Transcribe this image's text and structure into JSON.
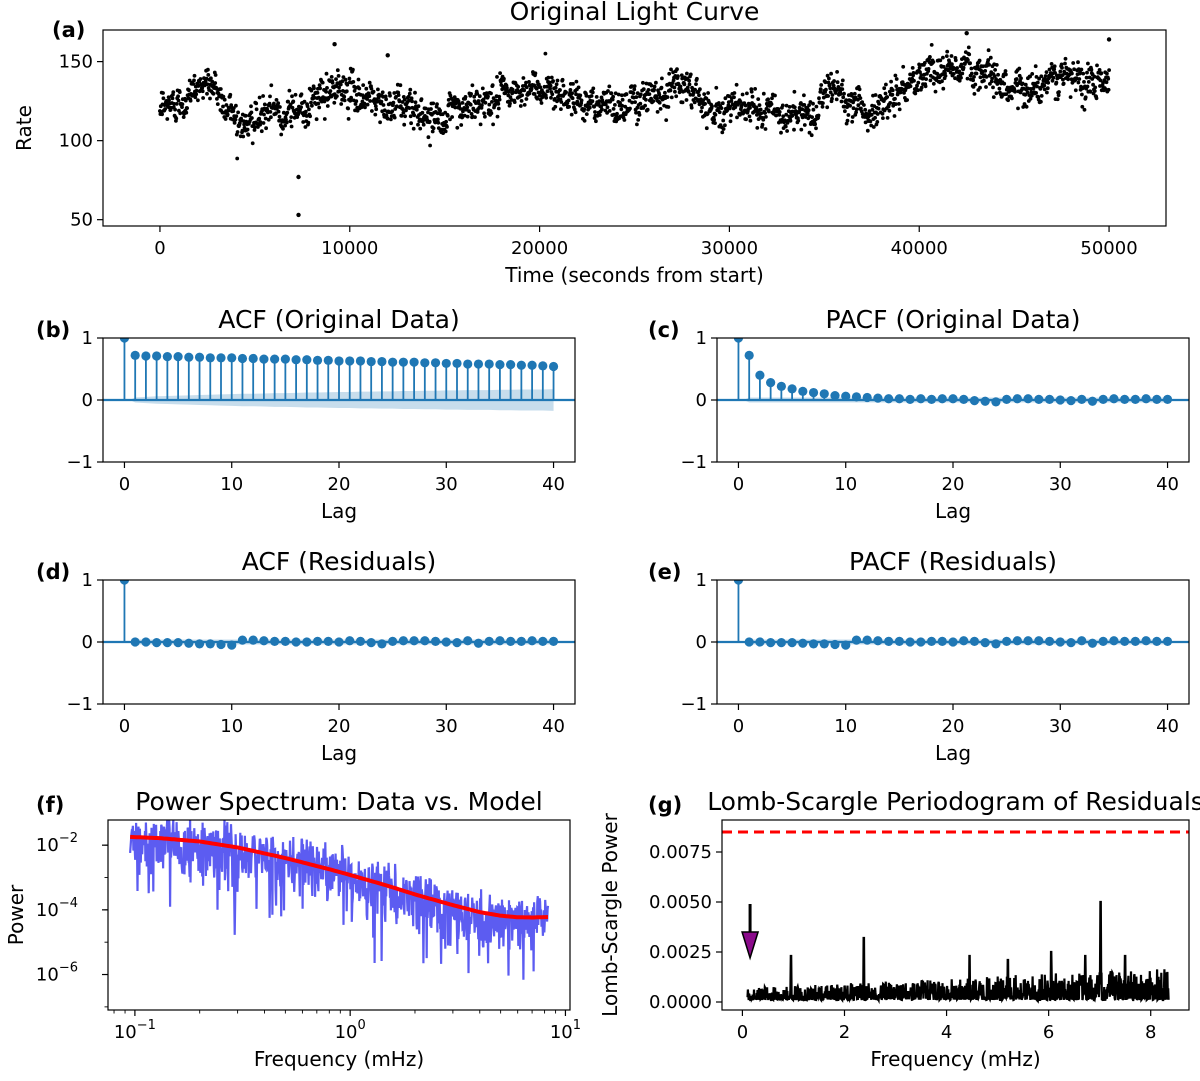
{
  "figure": {
    "background": "#ffffff"
  },
  "chart_data": [
    {
      "id": "a",
      "panel_label": "(a)",
      "type": "scatter",
      "title": "Original Light Curve",
      "xlabel": "Time (seconds from start)",
      "ylabel": "Rate",
      "xlim": [
        -3000,
        53000
      ],
      "ylim": [
        46,
        170
      ],
      "xticks": [
        0,
        10000,
        20000,
        30000,
        40000,
        50000
      ],
      "xtick_labels": [
        "0",
        "10000",
        "20000",
        "30000",
        "40000",
        "50000"
      ],
      "yticks": [
        50,
        100,
        150
      ],
      "ytick_labels": [
        "50",
        "100",
        "150"
      ],
      "color": "#000000",
      "trend": {
        "x": [
          0,
          1000,
          2500,
          3500,
          4500,
          6000,
          8000,
          9500,
          12000,
          15000,
          17000,
          20500,
          22000,
          24000,
          27500,
          29000,
          32000,
          34000,
          35500,
          37500,
          39500,
          41000,
          43000,
          45000,
          47000,
          50000
        ],
        "y": [
          118,
          125,
          138,
          122,
          110,
          118,
          123,
          133,
          124,
          114,
          125,
          135,
          125,
          122,
          137,
          122,
          119,
          115,
          133,
          116,
          137,
          145,
          146,
          133,
          138,
          140
        ]
      },
      "n_points": 2200,
      "noise_sd": 5,
      "outliers": [
        {
          "x": 7300,
          "y": 77
        },
        {
          "x": 7300,
          "y": 53
        },
        {
          "x": 9200,
          "y": 161
        },
        {
          "x": 12000,
          "y": 154
        },
        {
          "x": 42500,
          "y": 168
        },
        {
          "x": 50000,
          "y": 164
        }
      ]
    },
    {
      "id": "b",
      "panel_label": "(b)",
      "type": "stem",
      "title": "ACF (Original Data)",
      "xlabel": "Lag",
      "ylabel": "",
      "xlim": [
        -2,
        42
      ],
      "ylim": [
        -1,
        1
      ],
      "xticks": [
        0,
        10,
        20,
        30,
        40
      ],
      "yticks": [
        -1,
        0,
        1
      ],
      "ytick_labels": [
        "−1",
        "0",
        "1"
      ],
      "color": "#1f77b4",
      "lags": [
        0,
        1,
        2,
        3,
        4,
        5,
        6,
        7,
        8,
        9,
        10,
        11,
        12,
        13,
        14,
        15,
        16,
        17,
        18,
        19,
        20,
        21,
        22,
        23,
        24,
        25,
        26,
        27,
        28,
        29,
        30,
        31,
        32,
        33,
        34,
        35,
        36,
        37,
        38,
        39,
        40
      ],
      "values": [
        1.0,
        0.72,
        0.71,
        0.71,
        0.7,
        0.7,
        0.69,
        0.69,
        0.68,
        0.68,
        0.68,
        0.67,
        0.67,
        0.66,
        0.66,
        0.66,
        0.65,
        0.65,
        0.64,
        0.64,
        0.63,
        0.63,
        0.63,
        0.62,
        0.62,
        0.61,
        0.61,
        0.61,
        0.6,
        0.6,
        0.59,
        0.59,
        0.58,
        0.58,
        0.58,
        0.57,
        0.57,
        0.56,
        0.56,
        0.55,
        0.54
      ],
      "confint": [
        0.0,
        0.04,
        0.05,
        0.06,
        0.065,
        0.07,
        0.075,
        0.08,
        0.085,
        0.09,
        0.095,
        0.1,
        0.1,
        0.105,
        0.11,
        0.11,
        0.115,
        0.12,
        0.12,
        0.125,
        0.13,
        0.13,
        0.135,
        0.135,
        0.14,
        0.14,
        0.145,
        0.145,
        0.15,
        0.15,
        0.155,
        0.155,
        0.16,
        0.16,
        0.16,
        0.165,
        0.165,
        0.17,
        0.17,
        0.17,
        0.175
      ]
    },
    {
      "id": "c",
      "panel_label": "(c)",
      "type": "stem",
      "title": "PACF (Original Data)",
      "xlabel": "Lag",
      "ylabel": "",
      "xlim": [
        -2,
        42
      ],
      "ylim": [
        -1,
        1
      ],
      "xticks": [
        0,
        10,
        20,
        30,
        40
      ],
      "yticks": [
        -1,
        0,
        1
      ],
      "ytick_labels": [
        "−1",
        "0",
        "1"
      ],
      "color": "#1f77b4",
      "lags": [
        0,
        1,
        2,
        3,
        4,
        5,
        6,
        7,
        8,
        9,
        10,
        11,
        12,
        13,
        14,
        15,
        16,
        17,
        18,
        19,
        20,
        21,
        22,
        23,
        24,
        25,
        26,
        27,
        28,
        29,
        30,
        31,
        32,
        33,
        34,
        35,
        36,
        37,
        38,
        39,
        40
      ],
      "values": [
        1.0,
        0.72,
        0.4,
        0.28,
        0.22,
        0.18,
        0.14,
        0.12,
        0.1,
        0.07,
        0.06,
        0.05,
        0.04,
        0.03,
        0.02,
        0.02,
        0.01,
        0.02,
        0.01,
        0.02,
        0.02,
        0.01,
        -0.01,
        -0.02,
        -0.03,
        0.01,
        0.02,
        0.02,
        0.01,
        0.01,
        0.0,
        -0.01,
        0.01,
        -0.02,
        0.01,
        0.02,
        0.01,
        0.01,
        0.02,
        0.01,
        0.01
      ],
      "confint": [
        0.0,
        0.04,
        0.04,
        0.04,
        0.04,
        0.04,
        0.04,
        0.04,
        0.04,
        0.04,
        0.04,
        0.04,
        0.04,
        0.04,
        0.04,
        0.04,
        0.04,
        0.04,
        0.04,
        0.04,
        0.04,
        0.04,
        0.04,
        0.04,
        0.04,
        0.04,
        0.04,
        0.04,
        0.04,
        0.04,
        0.04,
        0.04,
        0.04,
        0.04,
        0.04,
        0.04,
        0.04,
        0.04,
        0.04,
        0.04,
        0.04
      ]
    },
    {
      "id": "d",
      "panel_label": "(d)",
      "type": "stem",
      "title": "ACF (Residuals)",
      "xlabel": "Lag",
      "ylabel": "",
      "xlim": [
        -2,
        42
      ],
      "ylim": [
        -1,
        1
      ],
      "xticks": [
        0,
        10,
        20,
        30,
        40
      ],
      "yticks": [
        -1,
        0,
        1
      ],
      "ytick_labels": [
        "−1",
        "0",
        "1"
      ],
      "color": "#1f77b4",
      "lags": [
        0,
        1,
        2,
        3,
        4,
        5,
        6,
        7,
        8,
        9,
        10,
        11,
        12,
        13,
        14,
        15,
        16,
        17,
        18,
        19,
        20,
        21,
        22,
        23,
        24,
        25,
        26,
        27,
        28,
        29,
        30,
        31,
        32,
        33,
        34,
        35,
        36,
        37,
        38,
        39,
        40
      ],
      "values": [
        1.0,
        0.0,
        0.0,
        -0.01,
        -0.01,
        -0.01,
        -0.02,
        -0.03,
        -0.03,
        -0.04,
        -0.05,
        0.03,
        0.03,
        0.02,
        0.01,
        0.01,
        0.0,
        0.0,
        0.01,
        0.01,
        0.0,
        0.02,
        0.01,
        -0.01,
        -0.03,
        0.01,
        0.02,
        0.02,
        0.02,
        0.01,
        0.0,
        -0.01,
        0.02,
        -0.02,
        0.01,
        0.02,
        0.01,
        0.01,
        0.02,
        0.01,
        0.01
      ],
      "confint": [
        0.0,
        0.04,
        0.04,
        0.04,
        0.04,
        0.04,
        0.04,
        0.04,
        0.04,
        0.04,
        0.04,
        0.04,
        0.04,
        0.04,
        0.04,
        0.04,
        0.04,
        0.04,
        0.04,
        0.04,
        0.04,
        0.04,
        0.04,
        0.04,
        0.04,
        0.04,
        0.04,
        0.04,
        0.04,
        0.04,
        0.04,
        0.04,
        0.04,
        0.04,
        0.04,
        0.04,
        0.04,
        0.04,
        0.04,
        0.04,
        0.04
      ]
    },
    {
      "id": "e",
      "panel_label": "(e)",
      "type": "stem",
      "title": "PACF (Residuals)",
      "xlabel": "Lag",
      "ylabel": "",
      "xlim": [
        -2,
        42
      ],
      "ylim": [
        -1,
        1
      ],
      "xticks": [
        0,
        10,
        20,
        30,
        40
      ],
      "yticks": [
        -1,
        0,
        1
      ],
      "ytick_labels": [
        "−1",
        "0",
        "1"
      ],
      "color": "#1f77b4",
      "lags": [
        0,
        1,
        2,
        3,
        4,
        5,
        6,
        7,
        8,
        9,
        10,
        11,
        12,
        13,
        14,
        15,
        16,
        17,
        18,
        19,
        20,
        21,
        22,
        23,
        24,
        25,
        26,
        27,
        28,
        29,
        30,
        31,
        32,
        33,
        34,
        35,
        36,
        37,
        38,
        39,
        40
      ],
      "values": [
        1.0,
        0.0,
        0.0,
        -0.01,
        -0.01,
        -0.01,
        -0.02,
        -0.03,
        -0.03,
        -0.04,
        -0.05,
        0.03,
        0.03,
        0.02,
        0.01,
        0.01,
        0.0,
        0.0,
        0.01,
        0.01,
        0.0,
        0.02,
        0.01,
        -0.01,
        -0.03,
        0.01,
        0.02,
        0.02,
        0.02,
        0.01,
        0.0,
        -0.01,
        0.02,
        -0.02,
        0.01,
        0.02,
        0.01,
        0.01,
        0.02,
        0.01,
        0.01
      ],
      "confint": [
        0.0,
        0.04,
        0.04,
        0.04,
        0.04,
        0.04,
        0.04,
        0.04,
        0.04,
        0.04,
        0.04,
        0.04,
        0.04,
        0.04,
        0.04,
        0.04,
        0.04,
        0.04,
        0.04,
        0.04,
        0.04,
        0.04,
        0.04,
        0.04,
        0.04,
        0.04,
        0.04,
        0.04,
        0.04,
        0.04,
        0.04,
        0.04,
        0.04,
        0.04,
        0.04,
        0.04,
        0.04,
        0.04,
        0.04,
        0.04,
        0.04
      ]
    },
    {
      "id": "f",
      "panel_label": "(f)",
      "type": "line",
      "title": "Power Spectrum: Data vs. Model",
      "xlabel": "Frequency (mHz)",
      "ylabel": "Power",
      "xscale": "log",
      "yscale": "log",
      "xlim": [
        0.075,
        10.5
      ],
      "ylim": [
        8e-08,
        0.06
      ],
      "xticks": [
        0.1,
        1,
        10
      ],
      "xtick_labels": [
        "10",
        "10",
        "10"
      ],
      "xtick_exps": [
        "−1",
        "0",
        "1"
      ],
      "yticks": [
        1e-06,
        0.0001,
        0.01
      ],
      "ytick_labels": [
        "10",
        "10",
        "10"
      ],
      "ytick_exps": [
        "−6",
        "−4",
        "−2"
      ],
      "series": [
        {
          "name": "Data",
          "color": "#4a4af0",
          "freq_range": [
            0.095,
            8.3
          ],
          "n_points": 900,
          "note": "noisy periodogram following the model envelope"
        },
        {
          "name": "Model",
          "color": "#ff0000",
          "x": [
            0.095,
            0.13,
            0.2,
            0.3,
            0.5,
            0.8,
            1.0,
            1.5,
            2.0,
            3.0,
            4.0,
            5.0,
            6.0,
            7.0,
            8.3
          ],
          "y": [
            0.018,
            0.0165,
            0.013,
            0.0085,
            0.004,
            0.0018,
            0.0012,
            0.00055,
            0.0003,
            0.00014,
            8.5e-05,
            6.6e-05,
            5.9e-05,
            5.8e-05,
            6e-05
          ]
        }
      ]
    },
    {
      "id": "g",
      "panel_label": "(g)",
      "type": "line",
      "title": "Lomb-Scargle Periodogram of Residuals",
      "xlabel": "Frequency (mHz)",
      "ylabel": "Lomb-Scargle Power",
      "xlim": [
        -0.4,
        8.75
      ],
      "ylim": [
        -0.0004,
        0.0091
      ],
      "xticks": [
        0,
        2,
        4,
        6,
        8
      ],
      "xtick_labels": [
        "0",
        "2",
        "4",
        "6",
        "8"
      ],
      "yticks": [
        0.0,
        0.0025,
        0.005,
        0.0075
      ],
      "ytick_labels": [
        "0.0000",
        "0.0025",
        "0.0050",
        "0.0075"
      ],
      "series": [
        {
          "name": "Lomb-Scargle Power",
          "color": "#000000",
          "freq_range": [
            0.1,
            8.35
          ],
          "n_points": 1100,
          "peaks": [
            {
              "x": 0.95,
              "y": 0.0023
            },
            {
              "x": 2.38,
              "y": 0.0032
            },
            {
              "x": 4.45,
              "y": 0.0023
            },
            {
              "x": 5.2,
              "y": 0.0021
            },
            {
              "x": 6.05,
              "y": 0.0025
            },
            {
              "x": 6.72,
              "y": 0.0023
            },
            {
              "x": 7.02,
              "y": 0.005
            },
            {
              "x": 7.5,
              "y": 0.0023
            }
          ]
        }
      ],
      "threshold": {
        "y": 0.0085,
        "color": "#ff0000",
        "style": "dashed"
      },
      "arrow": {
        "x": 0.15,
        "y_from": 0.0049,
        "y_to": 0.0022,
        "color": "#8b0a8b"
      }
    }
  ]
}
